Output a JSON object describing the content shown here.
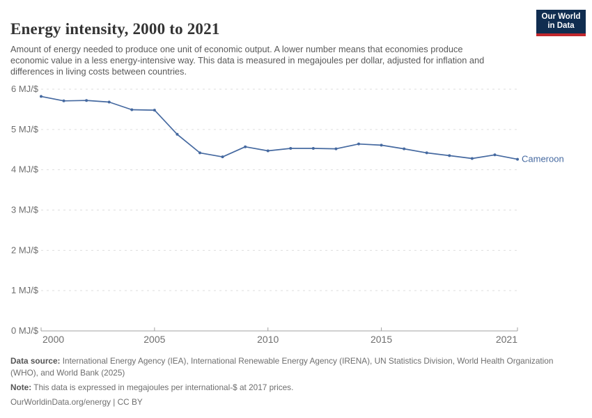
{
  "header": {
    "title": "Energy intensity, 2000 to 2021",
    "subtitle": "Amount of energy needed to produce one unit of economic output. A lower number means that economies produce economic value in a less energy-intensive way. This data is measured in megajoules per dollar, adjusted for inflation and differences in living costs between countries.",
    "logo": {
      "line1": "Our World",
      "line2": "in Data"
    }
  },
  "chart_data": {
    "type": "line",
    "title": "Energy intensity, 2000 to 2021",
    "x": [
      2000,
      2001,
      2002,
      2003,
      2004,
      2005,
      2006,
      2007,
      2008,
      2009,
      2010,
      2011,
      2012,
      2013,
      2014,
      2015,
      2016,
      2017,
      2018,
      2019,
      2020,
      2021
    ],
    "series": [
      {
        "name": "Cameroon",
        "values": [
          5.82,
          5.71,
          5.72,
          5.68,
          5.49,
          5.48,
          4.88,
          4.42,
          4.32,
          4.57,
          4.47,
          4.53,
          4.53,
          4.52,
          4.64,
          4.61,
          4.52,
          4.42,
          4.35,
          4.28,
          4.37,
          4.26
        ]
      }
    ],
    "xlim": [
      2000,
      2021
    ],
    "ylim": [
      0,
      6
    ],
    "x_ticks": [
      2000,
      2005,
      2010,
      2015,
      2021
    ],
    "y_ticks": [
      0,
      1,
      2,
      3,
      4,
      5,
      6
    ],
    "y_unit": " MJ/$",
    "grid": "horizontal-dashed",
    "legend_position": "end-of-line-label",
    "end_label": "Cameroon"
  },
  "colors": {
    "line": "#4569a0",
    "grid": "#dddddd",
    "axis": "#a1a1a1",
    "tick_text": "#6e6e6e",
    "logo_bg": "#102d50",
    "logo_stripe": "#c1272d"
  },
  "footer": {
    "source_label": "Data source:",
    "source_text": "International Energy Agency (IEA), International Renewable Energy Agency (IRENA), UN Statistics Division, World Health Organization (WHO), and World Bank (2025)",
    "note_label": "Note:",
    "note_text": "This data is expressed in megajoules per international-$ at 2017 prices.",
    "citation": "OurWorldinData.org/energy | CC BY"
  }
}
